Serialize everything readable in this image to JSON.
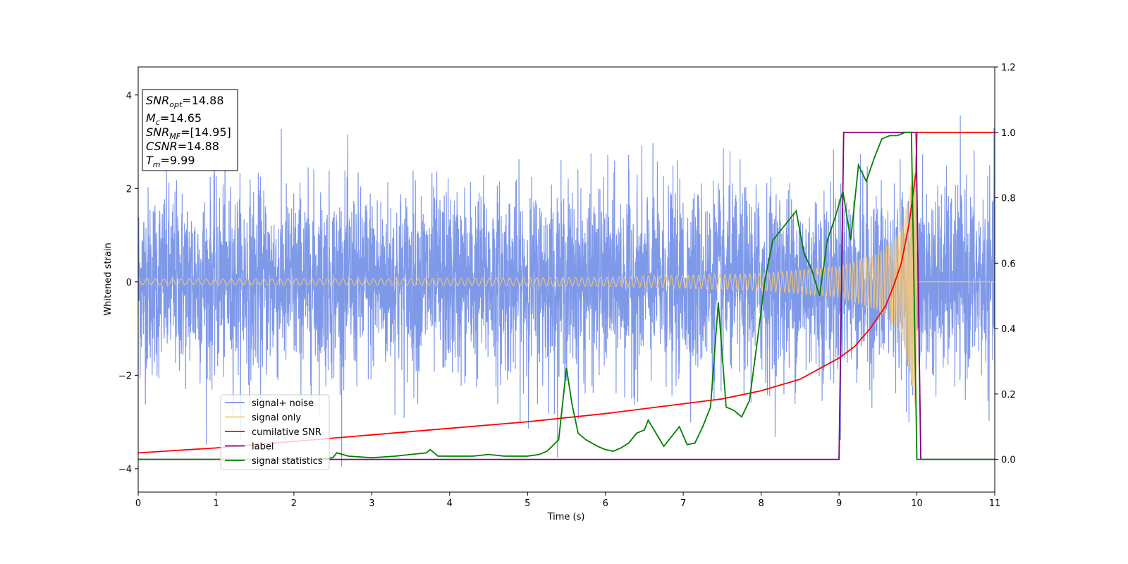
{
  "chart_data": {
    "type": "line",
    "xlabel": "Time (s)",
    "ylabel": "Whitened strain",
    "xlim": [
      0,
      11
    ],
    "ylim": [
      -4.5,
      4.6
    ],
    "y2lim": [
      -0.1,
      1.2
    ],
    "xticks": [
      0,
      1,
      2,
      3,
      4,
      5,
      6,
      7,
      8,
      9,
      10,
      11
    ],
    "yticks": [
      -4,
      -2,
      0,
      2,
      4
    ],
    "y2ticks": [
      0.0,
      0.2,
      0.4,
      0.6,
      0.8,
      1.0,
      1.2
    ],
    "legend": {
      "position": "lower-left",
      "entries": [
        {
          "label": "signal+ noise",
          "color": "#7893e8"
        },
        {
          "label": "signal only",
          "color": "#f5c97a"
        },
        {
          "label": "cumilative SNR",
          "color": "#ff0000"
        },
        {
          "label": "label",
          "color": "#800080"
        },
        {
          "label": "signal statistics",
          "color": "#008000"
        }
      ]
    },
    "annotation": {
      "lines": [
        {
          "base": "SNR",
          "sub": "opt",
          "value": "=14.88"
        },
        {
          "base": "M",
          "sub": "c",
          "value": "=14.65"
        },
        {
          "base": "SNR",
          "sub": "MF",
          "value": "=[14.95]"
        },
        {
          "base": "CSNR",
          "sub": "",
          "value": "=14.88"
        },
        {
          "base": "T",
          "sub": "m",
          "value": "=9.99"
        }
      ]
    },
    "series": [
      {
        "name": "signal+ noise",
        "axis": "left",
        "color": "#7893e8",
        "kind": "noise",
        "t_range": [
          0,
          11
        ],
        "amplitude_std": 1.0,
        "peak_range": [
          -3.95,
          4.15
        ]
      },
      {
        "name": "signal only",
        "axis": "left",
        "color": "#f5c97a",
        "kind": "chirp",
        "t_range": [
          0,
          11
        ],
        "merger_time": 10.0,
        "envelope": [
          [
            0,
            0.06
          ],
          [
            3,
            0.07
          ],
          [
            6,
            0.1
          ],
          [
            8,
            0.18
          ],
          [
            9,
            0.33
          ],
          [
            9.5,
            0.6
          ],
          [
            9.8,
            1.1
          ],
          [
            9.95,
            2.3
          ],
          [
            9.99,
            2.9
          ],
          [
            10.0,
            0
          ]
        ]
      },
      {
        "name": "cumilative SNR",
        "axis": "right",
        "color": "#ff0000",
        "x": [
          0,
          1,
          2,
          3,
          4,
          5,
          6,
          7,
          7.5,
          8,
          8.5,
          9,
          9.2,
          9.4,
          9.6,
          9.7,
          9.8,
          9.9,
          9.95,
          9.99,
          10.0,
          10.01,
          11
        ],
        "values": [
          0.02,
          0.035,
          0.055,
          0.075,
          0.095,
          0.115,
          0.14,
          0.17,
          0.185,
          0.21,
          0.245,
          0.31,
          0.345,
          0.4,
          0.47,
          0.53,
          0.6,
          0.72,
          0.81,
          0.88,
          1.0,
          1.0,
          1.0
        ]
      },
      {
        "name": "label",
        "axis": "right",
        "color": "#800080",
        "x": [
          0,
          9.0,
          9.06,
          9.99,
          10.05,
          11
        ],
        "values": [
          0.0,
          0.0,
          1.0,
          1.0,
          0.0,
          0.0
        ]
      },
      {
        "name": "signal statistics",
        "axis": "right",
        "color": "#008000",
        "x": [
          0,
          0.5,
          1,
          1.5,
          2,
          2.3,
          2.5,
          2.55,
          2.7,
          3,
          3.3,
          3.5,
          3.7,
          3.75,
          3.85,
          4,
          4.3,
          4.5,
          4.7,
          4.9,
          5,
          5.15,
          5.25,
          5.4,
          5.5,
          5.57,
          5.65,
          5.75,
          5.9,
          6.0,
          6.1,
          6.2,
          6.3,
          6.4,
          6.5,
          6.55,
          6.65,
          6.75,
          6.85,
          6.95,
          7.05,
          7.15,
          7.25,
          7.35,
          7.45,
          7.55,
          7.65,
          7.75,
          7.85,
          7.95,
          8.05,
          8.15,
          8.25,
          8.35,
          8.45,
          8.55,
          8.65,
          8.75,
          8.85,
          8.95,
          9.05,
          9.15,
          9.25,
          9.35,
          9.45,
          9.55,
          9.65,
          9.75,
          9.85,
          9.93,
          10.0,
          10.05,
          11
        ],
        "values": [
          0.0,
          0.0,
          0.0,
          0.0,
          0.0,
          0.0,
          0.005,
          0.02,
          0.01,
          0.005,
          0.01,
          0.015,
          0.02,
          0.03,
          0.01,
          0.01,
          0.01,
          0.015,
          0.01,
          0.01,
          0.01,
          0.015,
          0.025,
          0.06,
          0.28,
          0.17,
          0.08,
          0.06,
          0.04,
          0.03,
          0.025,
          0.035,
          0.05,
          0.08,
          0.09,
          0.12,
          0.08,
          0.04,
          0.07,
          0.1,
          0.045,
          0.05,
          0.1,
          0.16,
          0.48,
          0.16,
          0.15,
          0.13,
          0.18,
          0.36,
          0.55,
          0.67,
          0.7,
          0.73,
          0.76,
          0.63,
          0.58,
          0.5,
          0.67,
          0.74,
          0.82,
          0.67,
          0.9,
          0.85,
          0.92,
          0.98,
          0.99,
          0.99,
          1.0,
          1.0,
          0.0,
          0.0,
          0.0
        ]
      }
    ]
  }
}
